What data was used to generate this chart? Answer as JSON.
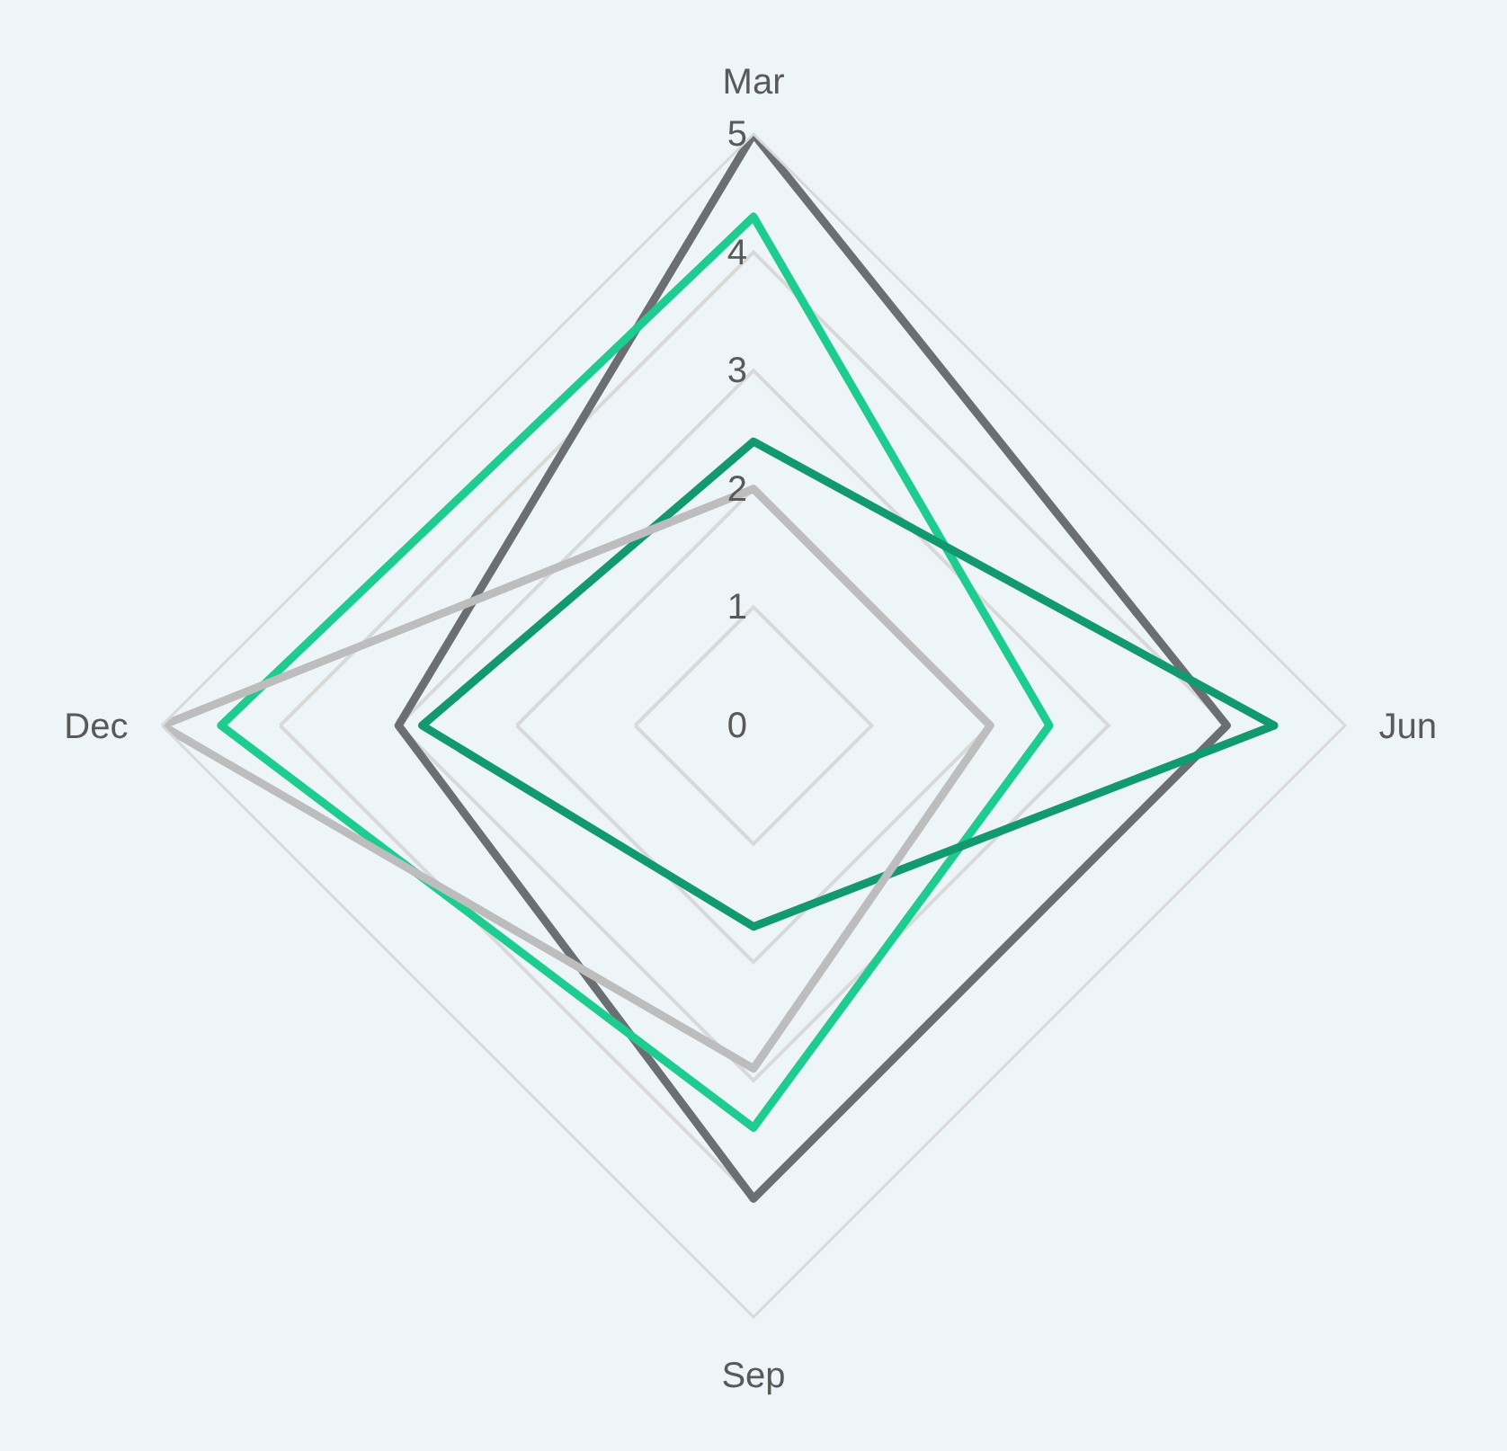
{
  "chart_data": {
    "type": "radar",
    "categories": [
      "Mar",
      "Jun",
      "Sep",
      "Dec"
    ],
    "series": [
      {
        "color": "#6b6e72",
        "values": [
          5,
          4,
          4,
          3
        ]
      },
      {
        "color": "#1fcc8f",
        "values": [
          4.3,
          2.5,
          3.4,
          4.5
        ]
      },
      {
        "color": "#129a6e",
        "values": [
          2.4,
          4.4,
          1.7,
          2.8
        ]
      },
      {
        "color": "#bdbdbd",
        "values": [
          2,
          2,
          2.9,
          5
        ]
      }
    ],
    "ylim": [
      0,
      5
    ],
    "yticks": [
      0,
      1,
      2,
      3,
      4,
      5
    ],
    "grid": true
  }
}
